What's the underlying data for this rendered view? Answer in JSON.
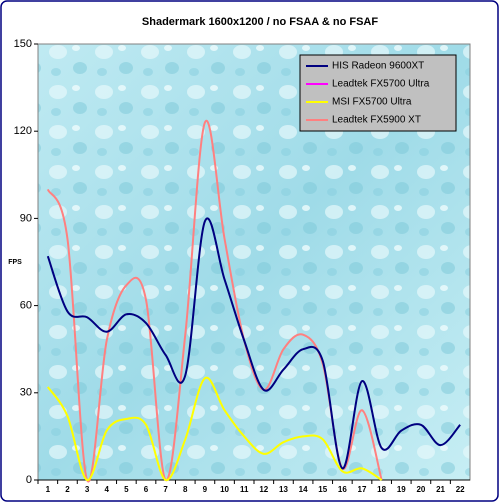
{
  "chart_data": {
    "type": "line",
    "title": "Shadermark 1600x1200 / no FSAA & no FSAF",
    "y_label": "FPS",
    "categories": [
      "1",
      "2",
      "3",
      "4",
      "5",
      "6",
      "7",
      "8",
      "9",
      "10",
      "11",
      "12",
      "13",
      "14",
      "15",
      "16",
      "17",
      "18",
      "19",
      "20",
      "21",
      "22"
    ],
    "series": [
      {
        "name": "HIS Radeon 9600XT",
        "color": "#000080",
        "values": [
          77,
          58,
          56,
          51,
          57,
          54,
          43,
          36,
          89,
          69,
          48,
          31,
          38,
          45,
          41,
          4,
          34,
          11,
          17,
          19,
          12,
          19
        ]
      },
      {
        "name": "Leadtek FX5700 Ultra",
        "color": "#ff00ff",
        "values": [
          null,
          null,
          null,
          null,
          null,
          null,
          null,
          null,
          null,
          null,
          null,
          null,
          null,
          null,
          null,
          null,
          null,
          null,
          null,
          null,
          null,
          null
        ]
      },
      {
        "name": "MSI FX5700 Ultra",
        "color": "#ffff00",
        "values": [
          32,
          22,
          0,
          17,
          21,
          19,
          0,
          14,
          35,
          24,
          15,
          9,
          13,
          15,
          14,
          3,
          4,
          0,
          null,
          null,
          null,
          null
        ]
      },
      {
        "name": "Leadtek FX5900 XT",
        "color": "#ff8080",
        "values": [
          100,
          83,
          0,
          48,
          67,
          62,
          0,
          50,
          123,
          83,
          48,
          31,
          45,
          50,
          40,
          4,
          24,
          0,
          null,
          null,
          null,
          null
        ]
      }
    ],
    "ylim": [
      0,
      150
    ],
    "yticks": [
      0,
      30,
      60,
      90,
      120,
      150
    ],
    "grid": false,
    "legend": "top-right"
  }
}
